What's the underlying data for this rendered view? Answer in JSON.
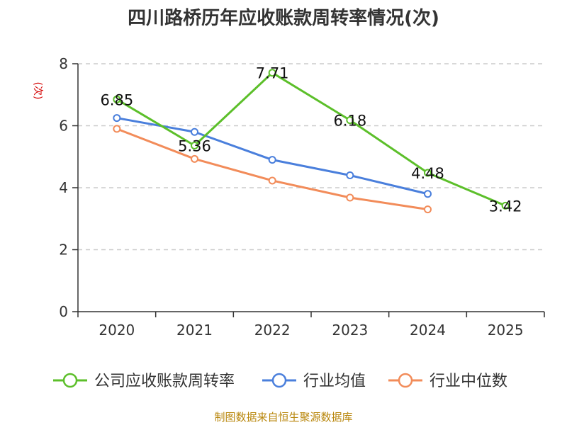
{
  "chart_data": {
    "type": "line",
    "title": "四川路桥历年应收账款周转率情况(次)",
    "ylabel": "(次)",
    "xlabel": "",
    "categories": [
      "2020",
      "2021",
      "2022",
      "2023",
      "2024",
      "2025"
    ],
    "ylim": [
      0,
      8
    ],
    "yticks": [
      0,
      2,
      4,
      6,
      8
    ],
    "grid": true,
    "legend_position": "bottom",
    "series": [
      {
        "name": "公司应收账款周转率",
        "color": "#5cbf2a",
        "values": [
          6.85,
          5.36,
          7.71,
          6.18,
          4.48,
          3.42
        ],
        "labels": [
          "6.85",
          "5.36",
          "7.71",
          "6.18",
          "4.48",
          "3.42"
        ]
      },
      {
        "name": "行业均值",
        "color": "#4a7fdc",
        "values": [
          6.25,
          5.8,
          4.9,
          4.4,
          3.8,
          null
        ]
      },
      {
        "name": "行业中位数",
        "color": "#f28c5a",
        "values": [
          5.9,
          4.93,
          4.23,
          3.68,
          3.3,
          null
        ]
      }
    ],
    "source": "制图数据来自恒生聚源数据库"
  }
}
